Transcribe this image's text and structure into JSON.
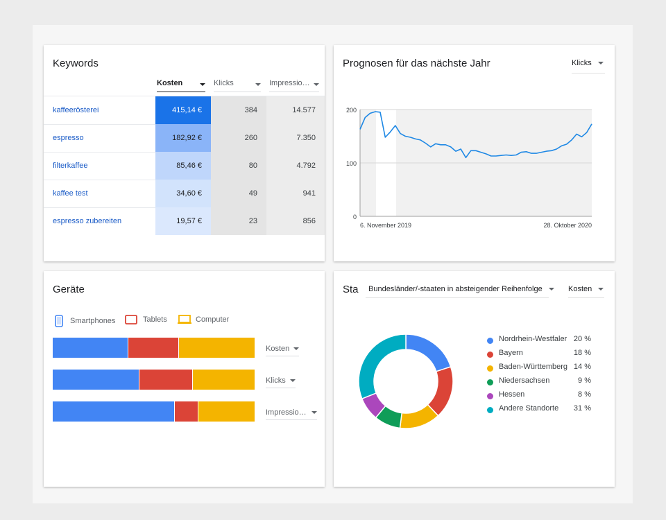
{
  "colors": {
    "blue": "#4285f4",
    "red": "#db4437",
    "yellow": "#f4b400",
    "green": "#0f9d58",
    "purple": "#ab47bc",
    "teal": "#00acc1",
    "link": "#1a5bc7",
    "line": "#1e88e5"
  },
  "keywords": {
    "title": "Keywords",
    "columns": [
      {
        "label": "Kosten",
        "active": true
      },
      {
        "label": "Klicks",
        "active": false
      },
      {
        "label": "Impressio…",
        "active": false
      }
    ],
    "rows": [
      {
        "keyword": "kaffeerösterei",
        "kosten": "415,14 €",
        "klicks": "384",
        "impressionen": "14.577",
        "kosten_shade": "#1a73e8",
        "kosten_text": "#ffffff"
      },
      {
        "keyword": "espresso",
        "kosten": "182,92 €",
        "klicks": "260",
        "impressionen": "7.350",
        "kosten_shade": "#8ab4f8",
        "kosten_text": "#202124"
      },
      {
        "keyword": "filterkaffee",
        "kosten": "85,46 €",
        "klicks": "80",
        "impressionen": "4.792",
        "kosten_shade": "#bfd6fb",
        "kosten_text": "#202124"
      },
      {
        "keyword": "kaffee test",
        "kosten": "34,60 €",
        "klicks": "49",
        "impressionen": "941",
        "kosten_shade": "#d2e3fc",
        "kosten_text": "#202124"
      },
      {
        "keyword": "espresso zubereiten",
        "kosten": "19,57 €",
        "klicks": "23",
        "impressionen": "856",
        "kosten_shade": "#dbe8fd",
        "kosten_text": "#202124"
      }
    ]
  },
  "forecast": {
    "title": "Prognosen für das nächste Jahr",
    "metric_dropdown": "Klicks"
  },
  "chart_data": {
    "type": "line",
    "title": "Prognosen für das nächste Jahr",
    "xlabel": "",
    "ylabel": "",
    "ylim": [
      0,
      200
    ],
    "yticks": [
      "0",
      "100",
      "200"
    ],
    "x_tick_labels": [
      "6. November 2019",
      "28. Oktober 2020"
    ],
    "grid": true,
    "series": [
      {
        "values": [
          163,
          185,
          193,
          196,
          195,
          148,
          158,
          170,
          155,
          150,
          148,
          145,
          143,
          137,
          130,
          136,
          134,
          134,
          130,
          122,
          126,
          110,
          123,
          123,
          120,
          117,
          113,
          113,
          114,
          115,
          114,
          115,
          120,
          121,
          118,
          118,
          120,
          122,
          123,
          126,
          132,
          135,
          143,
          154,
          149,
          157,
          173
        ]
      }
    ]
  },
  "devices": {
    "title": "Geräte",
    "legend": [
      {
        "label": "Smartphones",
        "icon": "smartphone-icon"
      },
      {
        "label": "Tablets",
        "icon": "tablet-icon"
      },
      {
        "label": "Computer",
        "icon": "computer-icon"
      }
    ],
    "bars": [
      {
        "metric": "Kosten",
        "shares": [
          0.375,
          0.25,
          0.375
        ]
      },
      {
        "metric": "Klicks",
        "shares": [
          0.43,
          0.265,
          0.305
        ]
      },
      {
        "metric": "Impressio…",
        "shares": [
          0.605,
          0.115,
          0.28
        ]
      }
    ]
  },
  "states": {
    "title": "Sta",
    "filter_dropdown": "Bundesländer/-staaten in absteigender Reihenfolge",
    "metric_dropdown": "Kosten",
    "items": [
      {
        "name": "Nordrhein-Westfaler",
        "share_label": "20 %",
        "value": 20,
        "color": "#4285f4"
      },
      {
        "name": "Bayern",
        "share_label": "18 %",
        "value": 18,
        "color": "#db4437"
      },
      {
        "name": "Baden-Württemberg",
        "share_label": "14 %",
        "value": 14,
        "color": "#f4b400"
      },
      {
        "name": "Niedersachsen",
        "share_label": "9 %",
        "value": 9,
        "color": "#0f9d58"
      },
      {
        "name": "Hessen",
        "share_label": "8 %",
        "value": 8,
        "color": "#ab47bc"
      },
      {
        "name": "Andere Standorte",
        "share_label": "31 %",
        "value": 31,
        "color": "#00acc1"
      }
    ]
  }
}
